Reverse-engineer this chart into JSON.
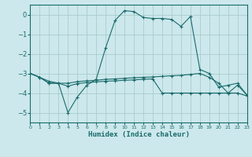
{
  "title": "",
  "xlabel": "Humidex (Indice chaleur)",
  "xlim": [
    0,
    23
  ],
  "ylim": [
    -5.5,
    0.5
  ],
  "yticks": [
    0,
    -1,
    -2,
    -3,
    -4,
    -5
  ],
  "xticks": [
    0,
    1,
    2,
    3,
    4,
    5,
    6,
    7,
    8,
    9,
    10,
    11,
    12,
    13,
    14,
    15,
    16,
    17,
    18,
    19,
    20,
    21,
    22,
    23
  ],
  "bg_color": "#cce8ec",
  "grid_color": "#aacccc",
  "line_color": "#1a6b6b",
  "line_main_y": [
    -3.0,
    -3.2,
    -3.5,
    -3.5,
    -5.0,
    -4.2,
    -3.6,
    -3.3,
    -1.7,
    -0.3,
    0.2,
    0.15,
    -0.15,
    -0.2,
    -0.2,
    -0.25,
    -0.6,
    -0.1,
    -2.8,
    -3.0,
    -3.7,
    -3.6,
    -3.5,
    -4.1
  ],
  "line_flat1_y": [
    -3.0,
    -3.2,
    -3.4,
    -3.5,
    -3.5,
    -3.42,
    -3.38,
    -3.35,
    -3.3,
    -3.28,
    -3.25,
    -3.22,
    -3.2,
    -3.18,
    -3.15,
    -3.12,
    -3.1,
    -3.05,
    -3.0,
    -3.2,
    -3.5,
    -4.0,
    -3.6,
    -4.1
  ],
  "line_flat2_y": [
    -3.0,
    -3.2,
    -3.5,
    -3.5,
    -3.65,
    -3.52,
    -3.47,
    -3.43,
    -3.4,
    -3.38,
    -3.35,
    -3.33,
    -3.3,
    -3.28,
    -4.0,
    -4.0,
    -4.0,
    -4.0,
    -4.0,
    -4.0,
    -4.0,
    -4.0,
    -4.0,
    -4.15
  ]
}
